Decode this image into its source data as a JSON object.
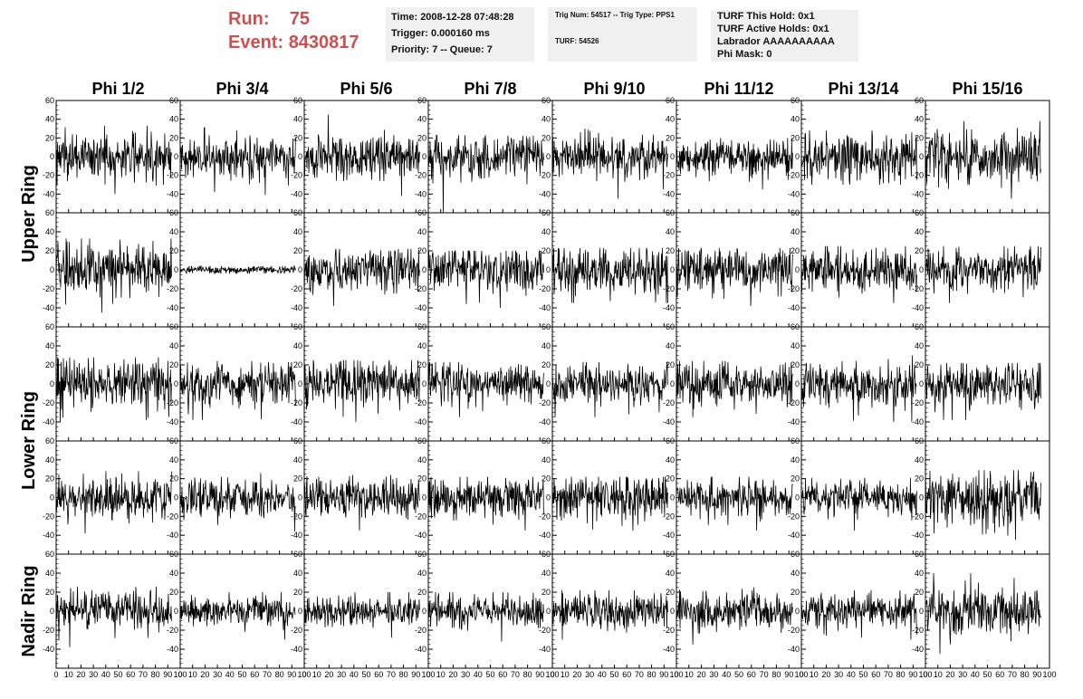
{
  "header": {
    "run_label": "Run:",
    "run_value": "75",
    "event_label": "Event:",
    "event_value": "8430817",
    "time": "Time: 2008-12-28 07:48:28",
    "trigger": "Trigger: 0.000160 ms",
    "priority": "Priority: 7 -- Queue: 7",
    "trig_num": "Trig Num: 54517 -- Trig Type: PPS1",
    "turf": "TURF: 54526",
    "turf_this_hold": "TURF This Hold: 0x1",
    "turf_active_holds": "TURF Active Holds: 0x1",
    "labrador": "Labrador AAAAAAAAAA",
    "phi_mask": "Phi Mask: 0"
  },
  "chart_data": {
    "type": "line",
    "columns": [
      "Phi 1/2",
      "Phi 3/4",
      "Phi 5/6",
      "Phi 7/8",
      "Phi 9/10",
      "Phi 11/12",
      "Phi 13/14",
      "Phi 15/16"
    ],
    "ring_labels": [
      "Upper Ring",
      "Lower Ring",
      "Nadir Ring"
    ],
    "rows": 5,
    "x_range": [
      0,
      100
    ],
    "y_range": [
      -60,
      60
    ],
    "y_ticks": [
      -40,
      -20,
      0,
      20,
      40,
      60
    ],
    "x_ticks": [
      0,
      10,
      20,
      30,
      40,
      50,
      60,
      70,
      80,
      90,
      100
    ],
    "signal_x_range": [
      0,
      93
    ],
    "samples": 256,
    "amplitude_rms": [
      [
        12,
        11,
        11,
        11,
        11,
        9,
        12,
        14
      ],
      [
        14,
        2,
        11,
        12,
        12,
        12,
        11,
        11
      ],
      [
        13,
        12,
        13,
        11,
        11,
        11,
        13,
        12
      ],
      [
        11,
        10,
        11,
        11,
        12,
        10,
        9,
        14
      ],
      [
        10,
        8,
        8,
        8,
        9,
        10,
        9,
        12
      ]
    ],
    "peak_pos": [
      [
        33,
        31,
        45,
        23,
        30,
        20,
        28,
        38
      ],
      [
        33,
        4,
        22,
        20,
        23,
        23,
        25,
        25
      ],
      [
        28,
        24,
        25,
        23,
        23,
        24,
        30,
        22
      ],
      [
        28,
        26,
        24,
        22,
        22,
        22,
        21,
        29
      ],
      [
        26,
        20,
        20,
        20,
        22,
        25,
        22,
        40
      ]
    ],
    "peak_neg": [
      [
        -40,
        -41,
        -42,
        -60,
        -45,
        -35,
        -30,
        -45
      ],
      [
        -45,
        -4,
        -38,
        -40,
        -35,
        -38,
        -35,
        -35
      ],
      [
        -40,
        -38,
        -40,
        -35,
        -35,
        -35,
        -40,
        -38
      ],
      [
        -38,
        -36,
        -35,
        -35,
        -35,
        -35,
        -35,
        -45
      ],
      [
        -38,
        -30,
        -28,
        -32,
        -30,
        -35,
        -30,
        -45
      ]
    ]
  }
}
